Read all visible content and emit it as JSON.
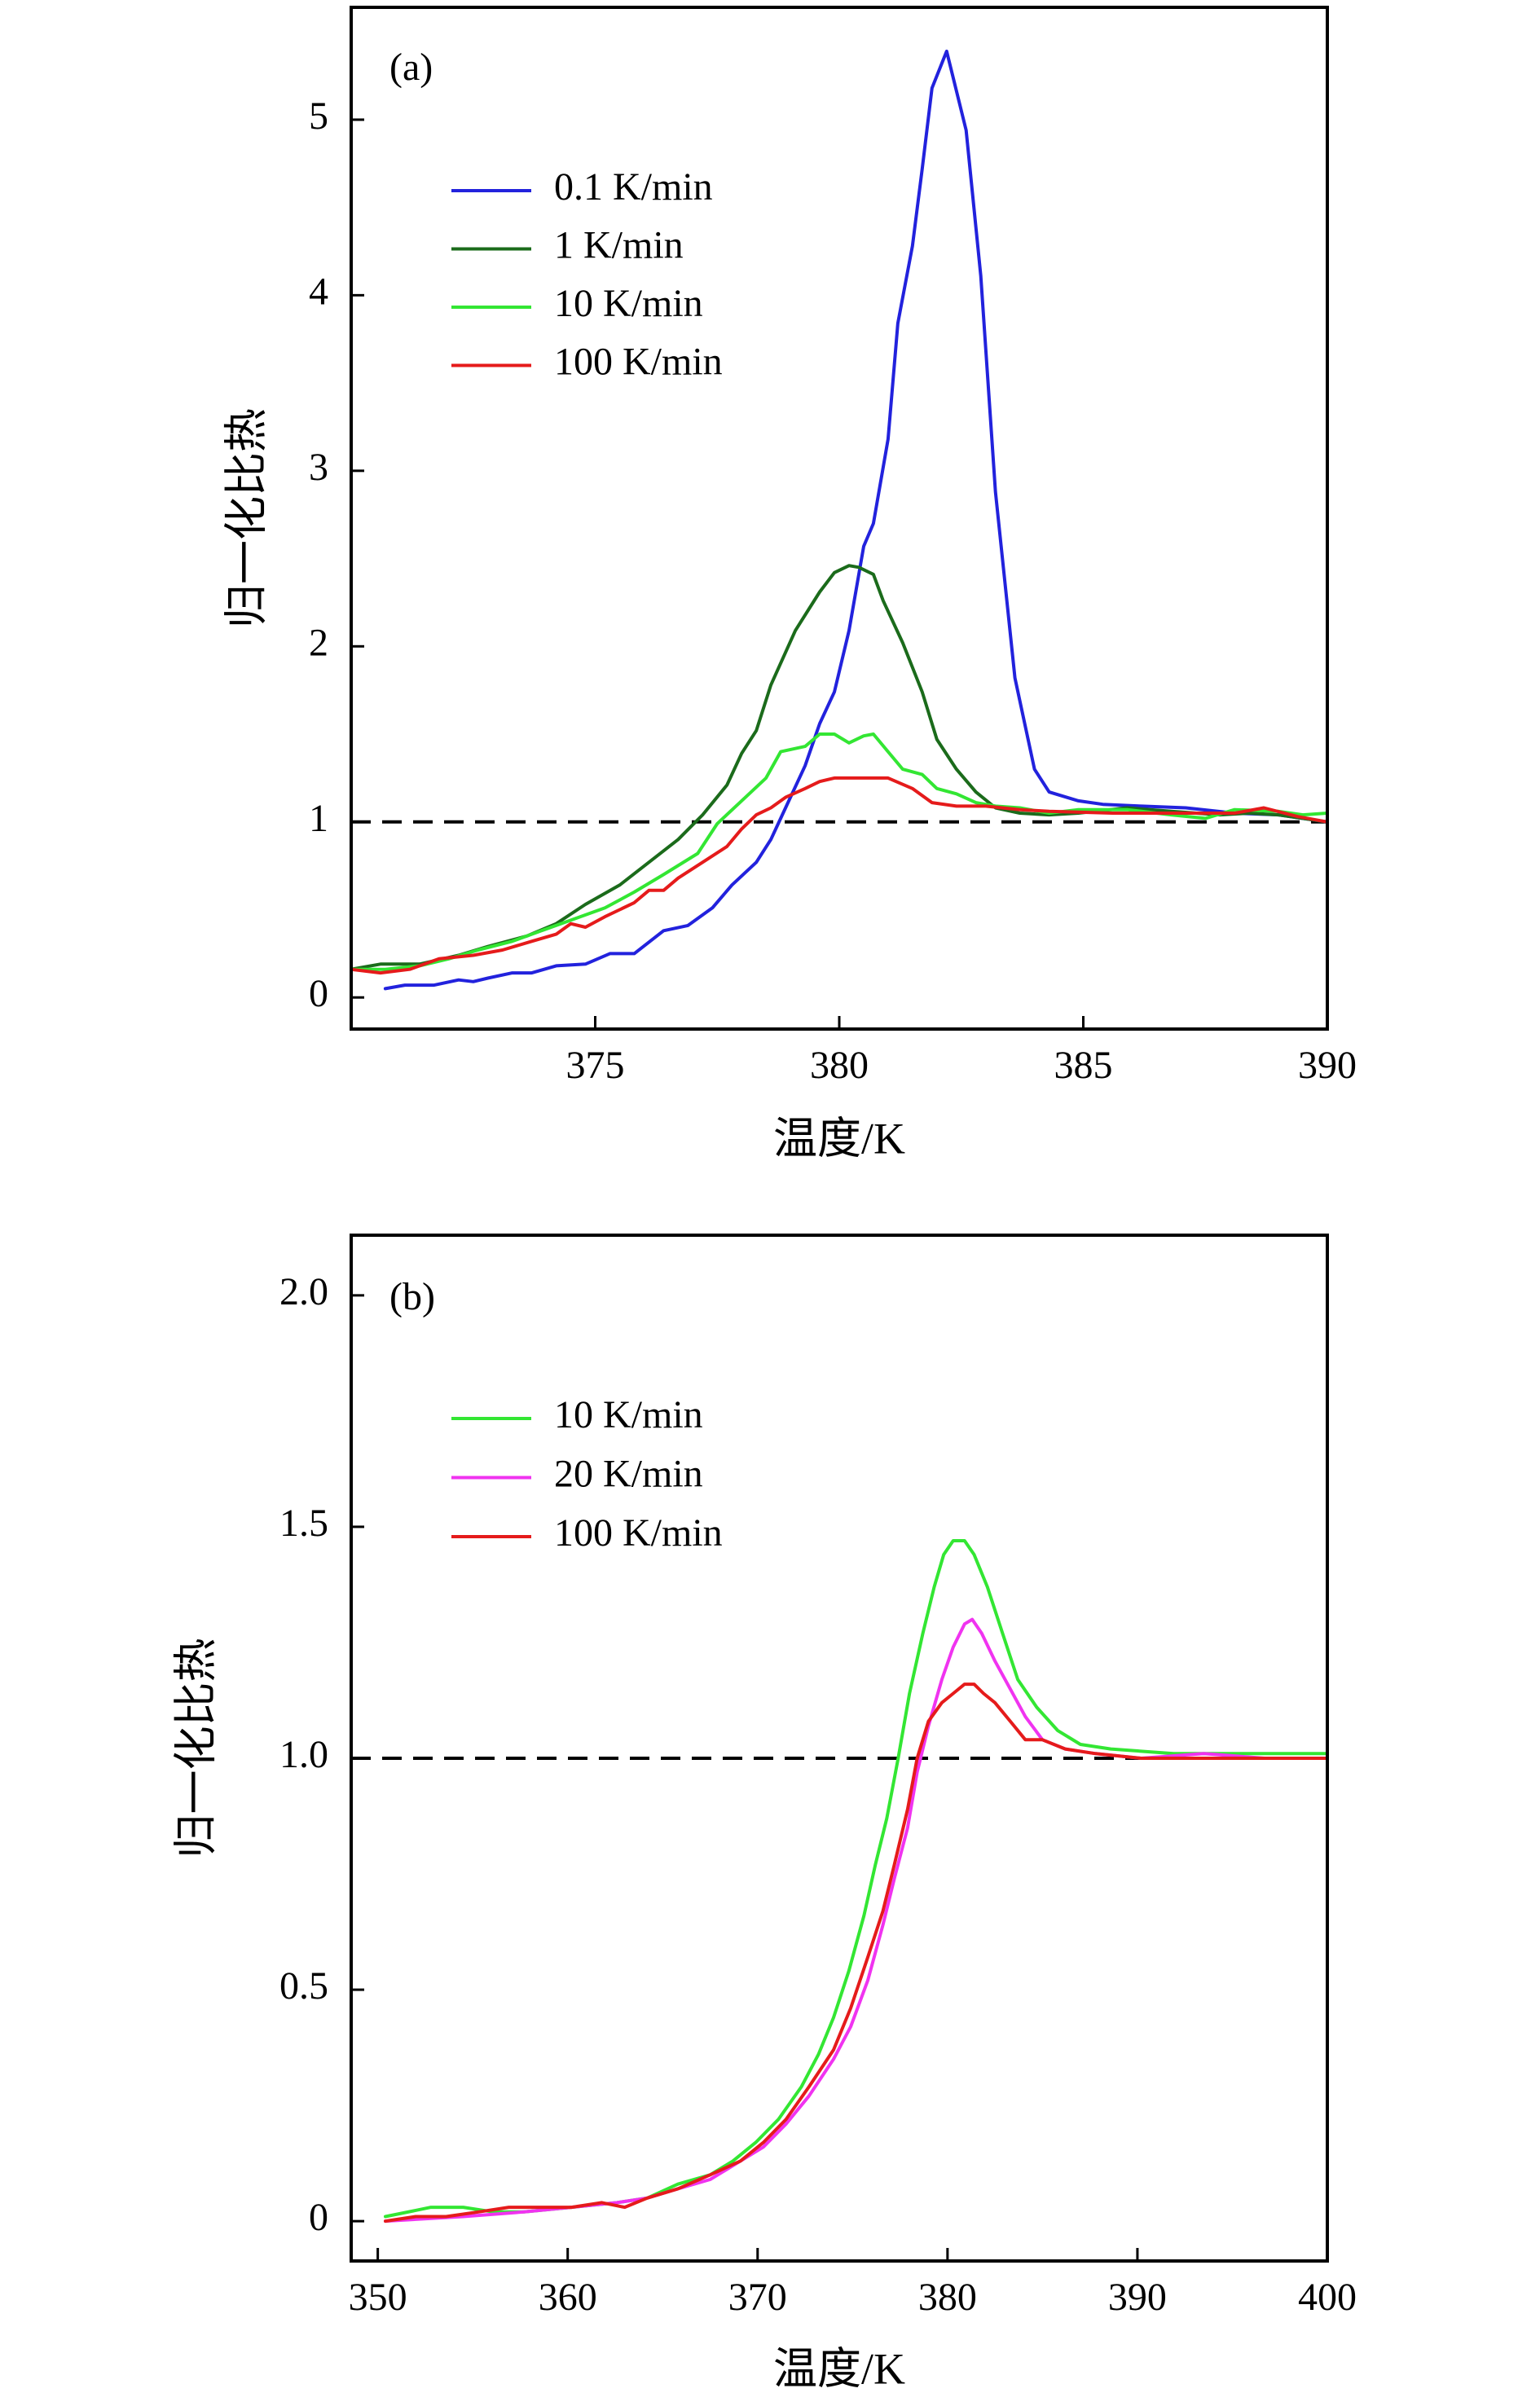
{
  "chart_data": [
    {
      "type": "line",
      "panel_label": "(a)",
      "xlabel": "温度/K",
      "ylabel": "归一化比热",
      "xlim": [
        370,
        390
      ],
      "ylim": [
        -0.18,
        5.64
      ],
      "xticks": [
        375,
        380,
        385,
        390
      ],
      "xtick_labels": [
        "375",
        "380",
        "385",
        "390"
      ],
      "yticks": [
        0,
        1,
        2,
        3,
        4,
        5
      ],
      "ytick_labels": [
        "0",
        "1",
        "2",
        "3",
        "4",
        "5"
      ],
      "grid": false,
      "legend_position": "upper-left",
      "reference_line": {
        "y": 1,
        "style": "dashed",
        "color": "#000000"
      },
      "series": [
        {
          "name": "0.1 K/min",
          "color": "#2222dd",
          "x": [
            370.7,
            371.1,
            371.7,
            372.2,
            372.5,
            372.8,
            373.3,
            373.7,
            374.2,
            374.8,
            375.3,
            375.8,
            376.4,
            376.9,
            377.4,
            377.8,
            378.3,
            378.6,
            378.9,
            379.3,
            379.6,
            379.9,
            380.2,
            380.5,
            380.7,
            381.0,
            381.2,
            381.5,
            381.7,
            381.9,
            382.2,
            382.6,
            382.9,
            383.2,
            383.6,
            384.0,
            384.3,
            384.9,
            385.4,
            386.2,
            387.1,
            388.1,
            389.0,
            390.0
          ],
          "y": [
            0.05,
            0.07,
            0.07,
            0.1,
            0.09,
            0.11,
            0.14,
            0.14,
            0.18,
            0.19,
            0.25,
            0.25,
            0.38,
            0.41,
            0.51,
            0.64,
            0.77,
            0.9,
            1.08,
            1.32,
            1.56,
            1.74,
            2.09,
            2.57,
            2.7,
            3.18,
            3.84,
            4.28,
            4.72,
            5.18,
            5.39,
            4.94,
            4.11,
            2.88,
            1.82,
            1.3,
            1.17,
            1.12,
            1.1,
            1.09,
            1.08,
            1.05,
            1.04,
            1.0
          ]
        },
        {
          "name": "1 K/min",
          "color": "#1b6b1b",
          "x": [
            370.0,
            370.6,
            371.4,
            372.2,
            372.8,
            373.6,
            374.2,
            374.8,
            375.5,
            376.1,
            376.7,
            377.2,
            377.7,
            378.0,
            378.3,
            378.6,
            379.1,
            379.6,
            379.9,
            380.2,
            380.4,
            380.7,
            380.9,
            381.3,
            381.7,
            382.0,
            382.4,
            382.8,
            383.2,
            383.7,
            384.3,
            384.9,
            385.9,
            386.8,
            387.8,
            388.4,
            389.0,
            390.0
          ],
          "y": [
            0.16,
            0.19,
            0.19,
            0.24,
            0.29,
            0.35,
            0.42,
            0.53,
            0.64,
            0.77,
            0.9,
            1.04,
            1.21,
            1.39,
            1.52,
            1.78,
            2.09,
            2.31,
            2.42,
            2.46,
            2.45,
            2.41,
            2.26,
            2.02,
            1.74,
            1.47,
            1.3,
            1.17,
            1.08,
            1.05,
            1.04,
            1.05,
            1.08,
            1.06,
            1.04,
            1.05,
            1.04,
            1.0
          ]
        },
        {
          "name": "10 K/min",
          "color": "#33e633",
          "x": [
            370.0,
            370.7,
            371.4,
            372.0,
            372.6,
            373.3,
            373.9,
            374.5,
            375.2,
            375.8,
            376.4,
            377.1,
            377.5,
            378.0,
            378.5,
            378.8,
            379.3,
            379.6,
            379.9,
            380.2,
            380.5,
            380.7,
            381.0,
            381.3,
            381.7,
            382.0,
            382.4,
            382.8,
            383.2,
            383.7,
            384.3,
            384.9,
            385.9,
            386.8,
            387.5,
            388.1,
            389.0,
            389.5,
            390.0
          ],
          "y": [
            0.16,
            0.16,
            0.18,
            0.22,
            0.27,
            0.32,
            0.38,
            0.44,
            0.51,
            0.6,
            0.7,
            0.82,
            0.99,
            1.12,
            1.25,
            1.4,
            1.43,
            1.5,
            1.5,
            1.45,
            1.49,
            1.5,
            1.4,
            1.3,
            1.27,
            1.19,
            1.16,
            1.11,
            1.09,
            1.08,
            1.05,
            1.07,
            1.07,
            1.04,
            1.02,
            1.07,
            1.06,
            1.04,
            1.05
          ]
        },
        {
          "name": "100 K/min",
          "color": "#e51b1b",
          "x": [
            370.0,
            370.6,
            371.2,
            371.8,
            372.5,
            373.1,
            373.7,
            374.2,
            374.5,
            374.8,
            375.2,
            375.5,
            375.8,
            376.1,
            376.4,
            376.7,
            377.2,
            377.7,
            378.0,
            378.3,
            378.6,
            378.9,
            379.3,
            379.6,
            379.9,
            380.5,
            381.0,
            381.5,
            381.9,
            382.4,
            383.0,
            383.7,
            384.3,
            385.6,
            386.8,
            388.1,
            388.7,
            389.4,
            390.0
          ],
          "y": [
            0.16,
            0.14,
            0.16,
            0.22,
            0.24,
            0.27,
            0.32,
            0.36,
            0.42,
            0.4,
            0.46,
            0.5,
            0.54,
            0.61,
            0.61,
            0.68,
            0.77,
            0.86,
            0.96,
            1.04,
            1.08,
            1.14,
            1.19,
            1.23,
            1.25,
            1.25,
            1.25,
            1.19,
            1.11,
            1.09,
            1.09,
            1.07,
            1.06,
            1.05,
            1.05,
            1.05,
            1.08,
            1.03,
            1.0
          ]
        }
      ]
    },
    {
      "type": "line",
      "panel_label": "(b)",
      "xlabel": "温度/K",
      "ylabel": "归一化比热",
      "xlim": [
        348.6,
        400
      ],
      "ylim": [
        -0.086,
        2.13
      ],
      "xticks": [
        350,
        360,
        370,
        380,
        390,
        400
      ],
      "xtick_labels": [
        "350",
        "360",
        "370",
        "380",
        "390",
        "400"
      ],
      "yticks": [
        0,
        0.5,
        1.0,
        1.5,
        2.0
      ],
      "ytick_labels": [
        "0",
        "0.5",
        "1.0",
        "1.5",
        "2.0"
      ],
      "grid": false,
      "legend_position": "upper-left",
      "reference_line": {
        "y": 1.0,
        "style": "dashed",
        "color": "#000000"
      },
      "series": [
        {
          "name": "10 K/min",
          "color": "#33e633",
          "x": [
            350.4,
            352.8,
            354.5,
            356.1,
            357.7,
            360.2,
            362.6,
            364.2,
            365.8,
            367.5,
            368.7,
            369.9,
            371.1,
            372.3,
            373.2,
            374.0,
            374.8,
            375.6,
            376.2,
            376.8,
            377.4,
            378.0,
            378.7,
            379.3,
            379.8,
            380.3,
            380.9,
            381.4,
            382.1,
            382.9,
            383.7,
            384.7,
            385.8,
            387.0,
            388.6,
            391.9,
            395.1,
            400.0
          ],
          "y": [
            0.01,
            0.03,
            0.03,
            0.02,
            0.02,
            0.03,
            0.04,
            0.05,
            0.08,
            0.1,
            0.13,
            0.17,
            0.22,
            0.29,
            0.36,
            0.44,
            0.54,
            0.66,
            0.77,
            0.87,
            1.0,
            1.14,
            1.27,
            1.37,
            1.44,
            1.47,
            1.47,
            1.44,
            1.37,
            1.27,
            1.17,
            1.11,
            1.06,
            1.03,
            1.02,
            1.01,
            1.01,
            1.01
          ]
        },
        {
          "name": "20 K/min",
          "color": "#f033f0",
          "x": [
            350.4,
            354.5,
            357.7,
            360.2,
            362.6,
            364.2,
            365.8,
            367.5,
            369.1,
            370.3,
            371.5,
            372.7,
            374.0,
            374.9,
            375.8,
            376.6,
            377.2,
            377.9,
            378.4,
            379.0,
            379.7,
            380.3,
            380.9,
            381.3,
            381.8,
            382.5,
            383.3,
            384.1,
            385.0,
            386.2,
            387.8,
            390.2,
            393.5,
            396.7,
            400.0
          ],
          "y": [
            0.0,
            0.01,
            0.02,
            0.03,
            0.04,
            0.05,
            0.07,
            0.09,
            0.13,
            0.16,
            0.21,
            0.27,
            0.35,
            0.42,
            0.52,
            0.64,
            0.74,
            0.85,
            0.97,
            1.07,
            1.17,
            1.24,
            1.29,
            1.3,
            1.27,
            1.21,
            1.15,
            1.09,
            1.04,
            1.02,
            1.01,
            1.0,
            1.01,
            1.0,
            1.0
          ]
        },
        {
          "name": "100 K/min",
          "color": "#e51b1b",
          "x": [
            350.4,
            352.0,
            353.6,
            355.3,
            356.9,
            358.5,
            360.2,
            361.8,
            363.0,
            364.2,
            365.8,
            367.5,
            369.1,
            370.3,
            371.5,
            372.7,
            374.0,
            374.9,
            375.8,
            376.6,
            377.2,
            377.9,
            378.4,
            379.0,
            379.7,
            380.3,
            380.9,
            381.4,
            381.9,
            382.5,
            383.3,
            384.1,
            385.0,
            386.2,
            387.8,
            390.2,
            392.7,
            395.1,
            397.5,
            400.0
          ],
          "y": [
            0.0,
            0.01,
            0.01,
            0.02,
            0.03,
            0.03,
            0.03,
            0.04,
            0.03,
            0.05,
            0.07,
            0.1,
            0.13,
            0.17,
            0.22,
            0.29,
            0.37,
            0.46,
            0.57,
            0.67,
            0.77,
            0.89,
            1.0,
            1.08,
            1.12,
            1.14,
            1.16,
            1.16,
            1.14,
            1.12,
            1.08,
            1.04,
            1.04,
            1.02,
            1.01,
            1.0,
            1.0,
            1.0,
            1.0,
            1.0
          ]
        }
      ]
    }
  ]
}
